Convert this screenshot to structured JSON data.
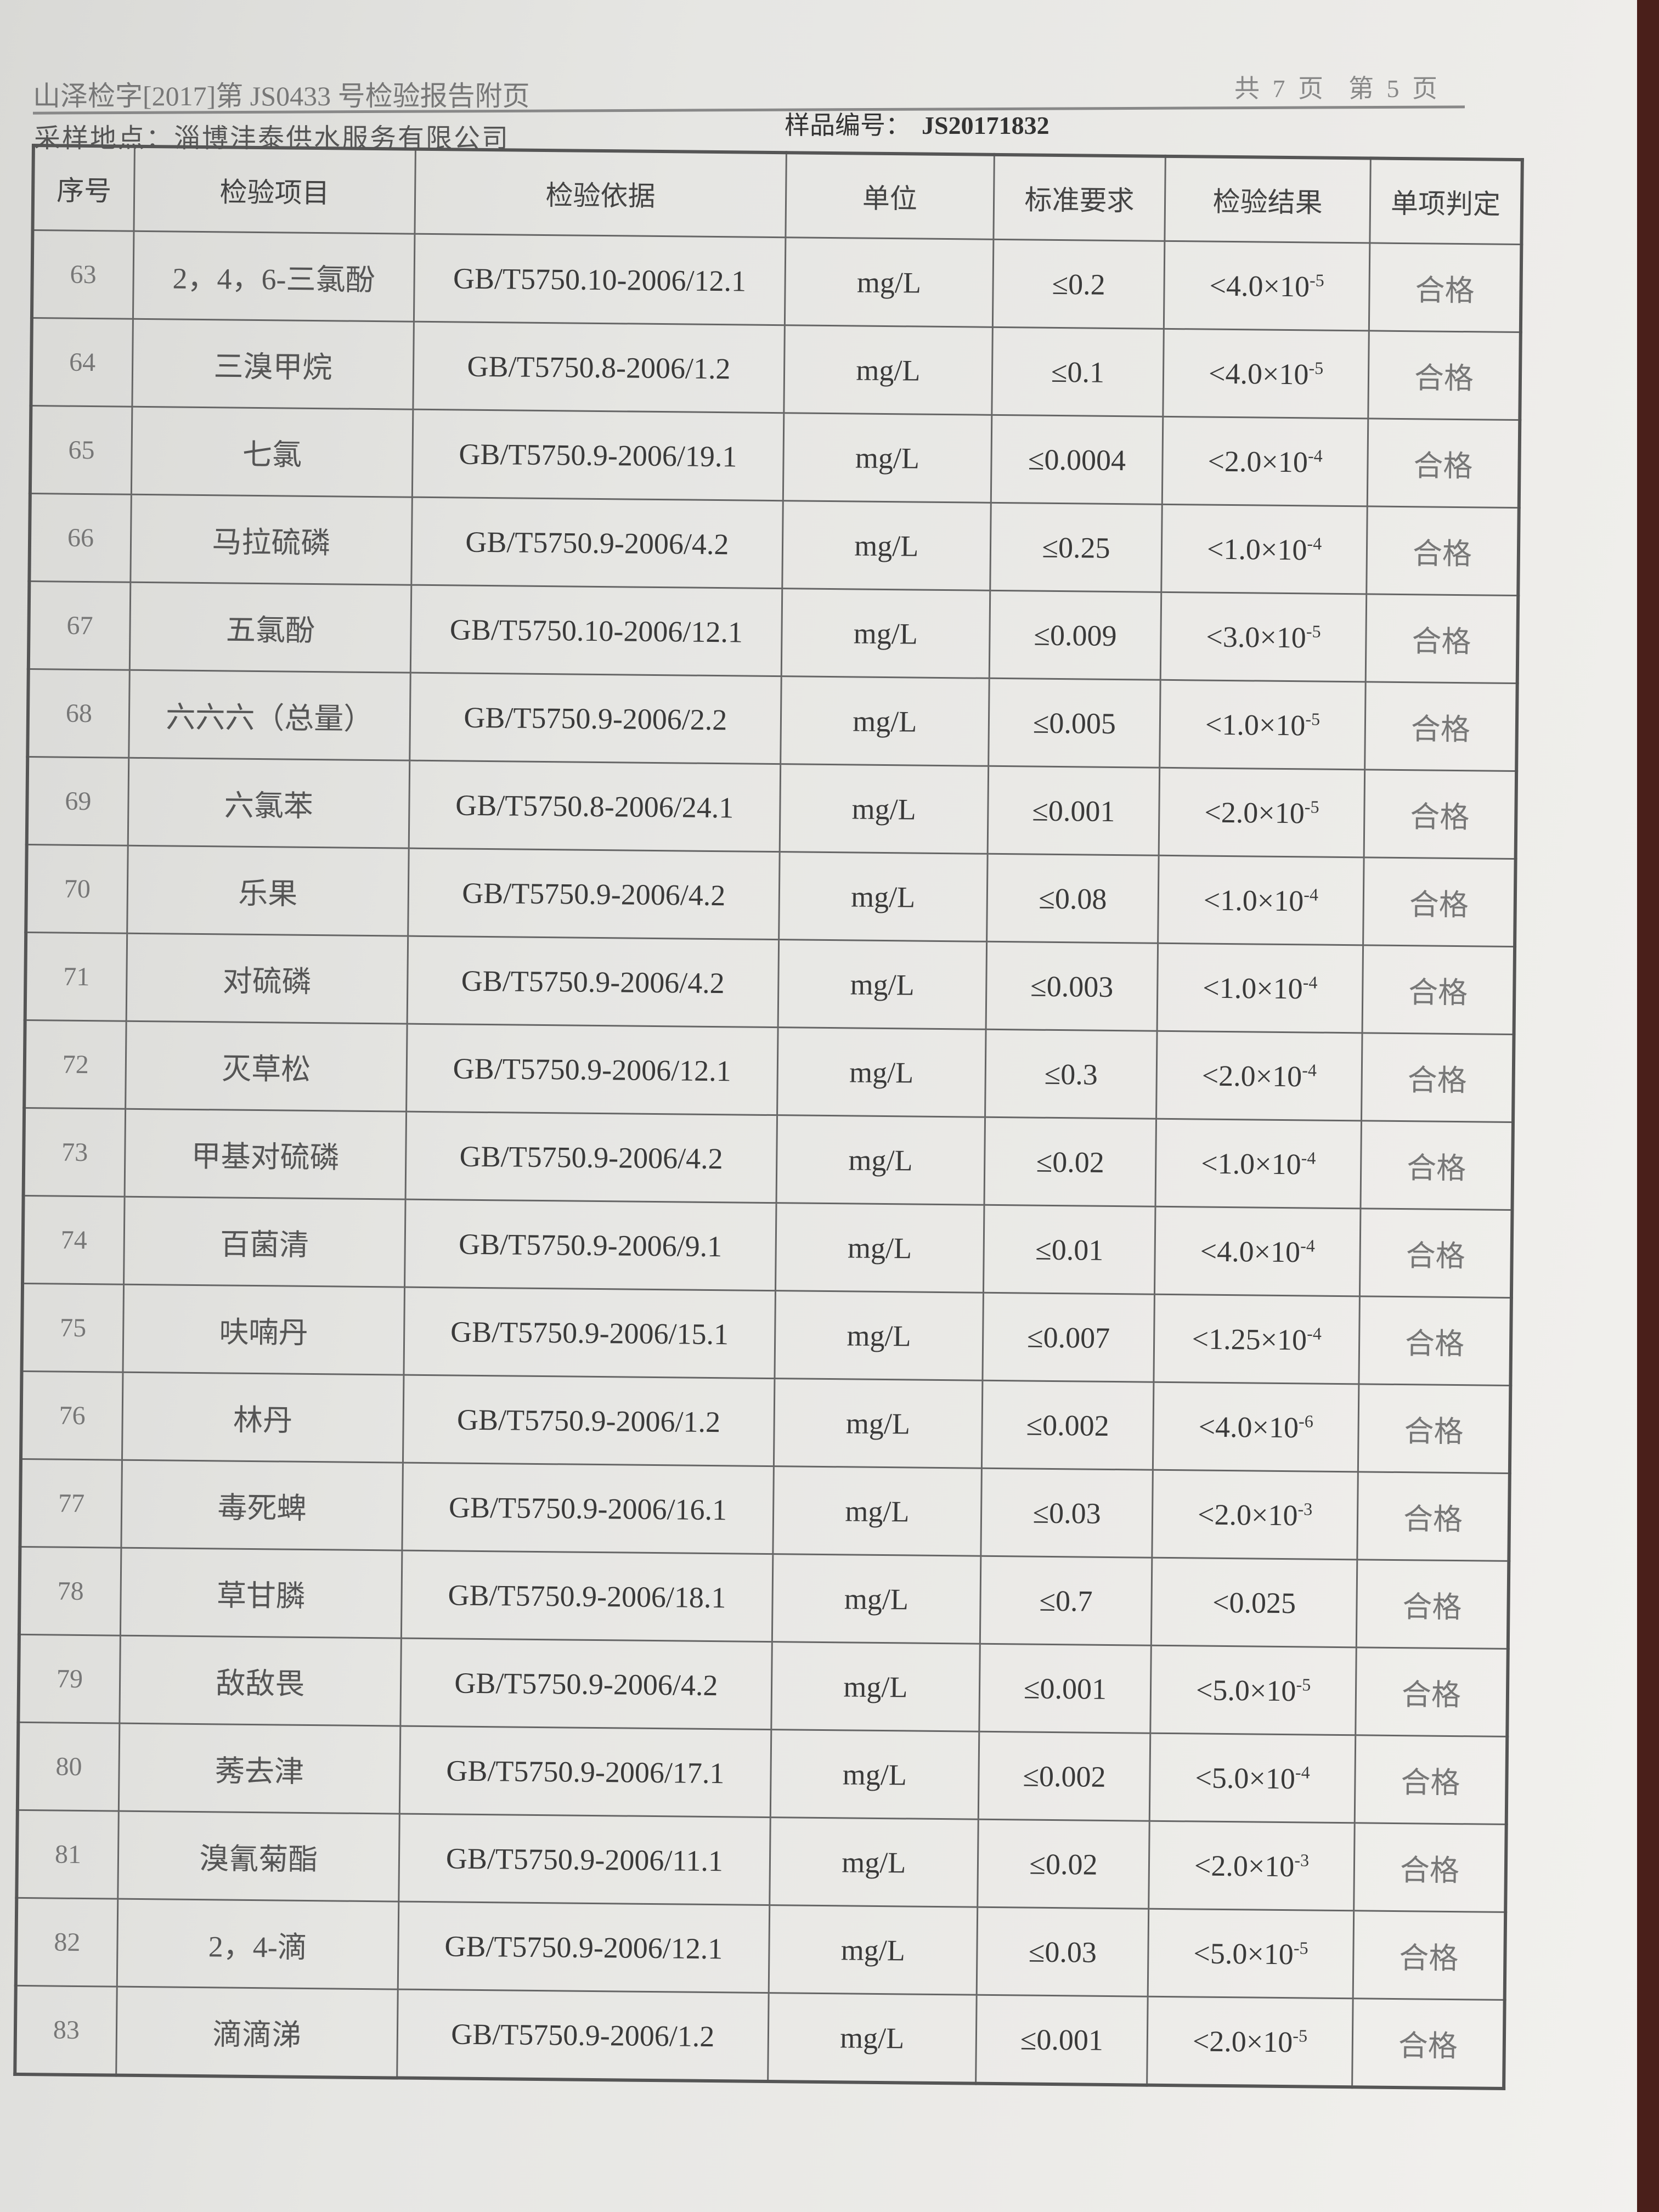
{
  "header": {
    "report_title": "山泽检字[2017]第 JS0433 号检验报告附页",
    "page_info": "共 7 页　第 5 页",
    "sampling_site_label": "采样地点：",
    "sampling_site": "淄博沣泰供水服务有限公司",
    "sample_no_label": "样品编号：",
    "sample_no": "JS20171832"
  },
  "table": {
    "columns": [
      "序号",
      "检验项目",
      "检验依据",
      "单位",
      "标准要求",
      "检验结果",
      "单项判定"
    ],
    "rows": [
      {
        "no": "63",
        "item": "2，4，6-三氯酚",
        "method": "GB/T5750.10-2006/12.1",
        "unit": "mg/L",
        "limit": "≤0.2",
        "result": "<4.0×10",
        "exp": "-5",
        "verdict": "合格"
      },
      {
        "no": "64",
        "item": "三溴甲烷",
        "method": "GB/T5750.8-2006/1.2",
        "unit": "mg/L",
        "limit": "≤0.1",
        "result": "<4.0×10",
        "exp": "-5",
        "verdict": "合格"
      },
      {
        "no": "65",
        "item": "七氯",
        "method": "GB/T5750.9-2006/19.1",
        "unit": "mg/L",
        "limit": "≤0.0004",
        "result": "<2.0×10",
        "exp": "-4",
        "verdict": "合格"
      },
      {
        "no": "66",
        "item": "马拉硫磷",
        "method": "GB/T5750.9-2006/4.2",
        "unit": "mg/L",
        "limit": "≤0.25",
        "result": "<1.0×10",
        "exp": "-4",
        "verdict": "合格"
      },
      {
        "no": "67",
        "item": "五氯酚",
        "method": "GB/T5750.10-2006/12.1",
        "unit": "mg/L",
        "limit": "≤0.009",
        "result": "<3.0×10",
        "exp": "-5",
        "verdict": "合格"
      },
      {
        "no": "68",
        "item": "六六六（总量）",
        "method": "GB/T5750.9-2006/2.2",
        "unit": "mg/L",
        "limit": "≤0.005",
        "result": "<1.0×10",
        "exp": "-5",
        "verdict": "合格"
      },
      {
        "no": "69",
        "item": "六氯苯",
        "method": "GB/T5750.8-2006/24.1",
        "unit": "mg/L",
        "limit": "≤0.001",
        "result": "<2.0×10",
        "exp": "-5",
        "verdict": "合格"
      },
      {
        "no": "70",
        "item": "乐果",
        "method": "GB/T5750.9-2006/4.2",
        "unit": "mg/L",
        "limit": "≤0.08",
        "result": "<1.0×10",
        "exp": "-4",
        "verdict": "合格"
      },
      {
        "no": "71",
        "item": "对硫磷",
        "method": "GB/T5750.9-2006/4.2",
        "unit": "mg/L",
        "limit": "≤0.003",
        "result": "<1.0×10",
        "exp": "-4",
        "verdict": "合格"
      },
      {
        "no": "72",
        "item": "灭草松",
        "method": "GB/T5750.9-2006/12.1",
        "unit": "mg/L",
        "limit": "≤0.3",
        "result": "<2.0×10",
        "exp": "-4",
        "verdict": "合格"
      },
      {
        "no": "73",
        "item": "甲基对硫磷",
        "method": "GB/T5750.9-2006/4.2",
        "unit": "mg/L",
        "limit": "≤0.02",
        "result": "<1.0×10",
        "exp": "-4",
        "verdict": "合格"
      },
      {
        "no": "74",
        "item": "百菌清",
        "method": "GB/T5750.9-2006/9.1",
        "unit": "mg/L",
        "limit": "≤0.01",
        "result": "<4.0×10",
        "exp": "-4",
        "verdict": "合格"
      },
      {
        "no": "75",
        "item": "呋喃丹",
        "method": "GB/T5750.9-2006/15.1",
        "unit": "mg/L",
        "limit": "≤0.007",
        "result": "<1.25×10",
        "exp": "-4",
        "verdict": "合格"
      },
      {
        "no": "76",
        "item": "林丹",
        "method": "GB/T5750.9-2006/1.2",
        "unit": "mg/L",
        "limit": "≤0.002",
        "result": "<4.0×10",
        "exp": "-6",
        "verdict": "合格"
      },
      {
        "no": "77",
        "item": "毒死蜱",
        "method": "GB/T5750.9-2006/16.1",
        "unit": "mg/L",
        "limit": "≤0.03",
        "result": "<2.0×10",
        "exp": "-3",
        "verdict": "合格"
      },
      {
        "no": "78",
        "item": "草甘膦",
        "method": "GB/T5750.9-2006/18.1",
        "unit": "mg/L",
        "limit": "≤0.7",
        "result": "<0.025",
        "exp": "",
        "verdict": "合格"
      },
      {
        "no": "79",
        "item": "敌敌畏",
        "method": "GB/T5750.9-2006/4.2",
        "unit": "mg/L",
        "limit": "≤0.001",
        "result": "<5.0×10",
        "exp": "-5",
        "verdict": "合格"
      },
      {
        "no": "80",
        "item": "莠去津",
        "method": "GB/T5750.9-2006/17.1",
        "unit": "mg/L",
        "limit": "≤0.002",
        "result": "<5.0×10",
        "exp": "-4",
        "verdict": "合格"
      },
      {
        "no": "81",
        "item": "溴氰菊酯",
        "method": "GB/T5750.9-2006/11.1",
        "unit": "mg/L",
        "limit": "≤0.02",
        "result": "<2.0×10",
        "exp": "-3",
        "verdict": "合格"
      },
      {
        "no": "82",
        "item": "2，4-滴",
        "method": "GB/T5750.9-2006/12.1",
        "unit": "mg/L",
        "limit": "≤0.03",
        "result": "<5.0×10",
        "exp": "-5",
        "verdict": "合格"
      },
      {
        "no": "83",
        "item": "滴滴涕",
        "method": "GB/T5750.9-2006/1.2",
        "unit": "mg/L",
        "limit": "≤0.001",
        "result": "<2.0×10",
        "exp": "-5",
        "verdict": "合格"
      }
    ]
  }
}
